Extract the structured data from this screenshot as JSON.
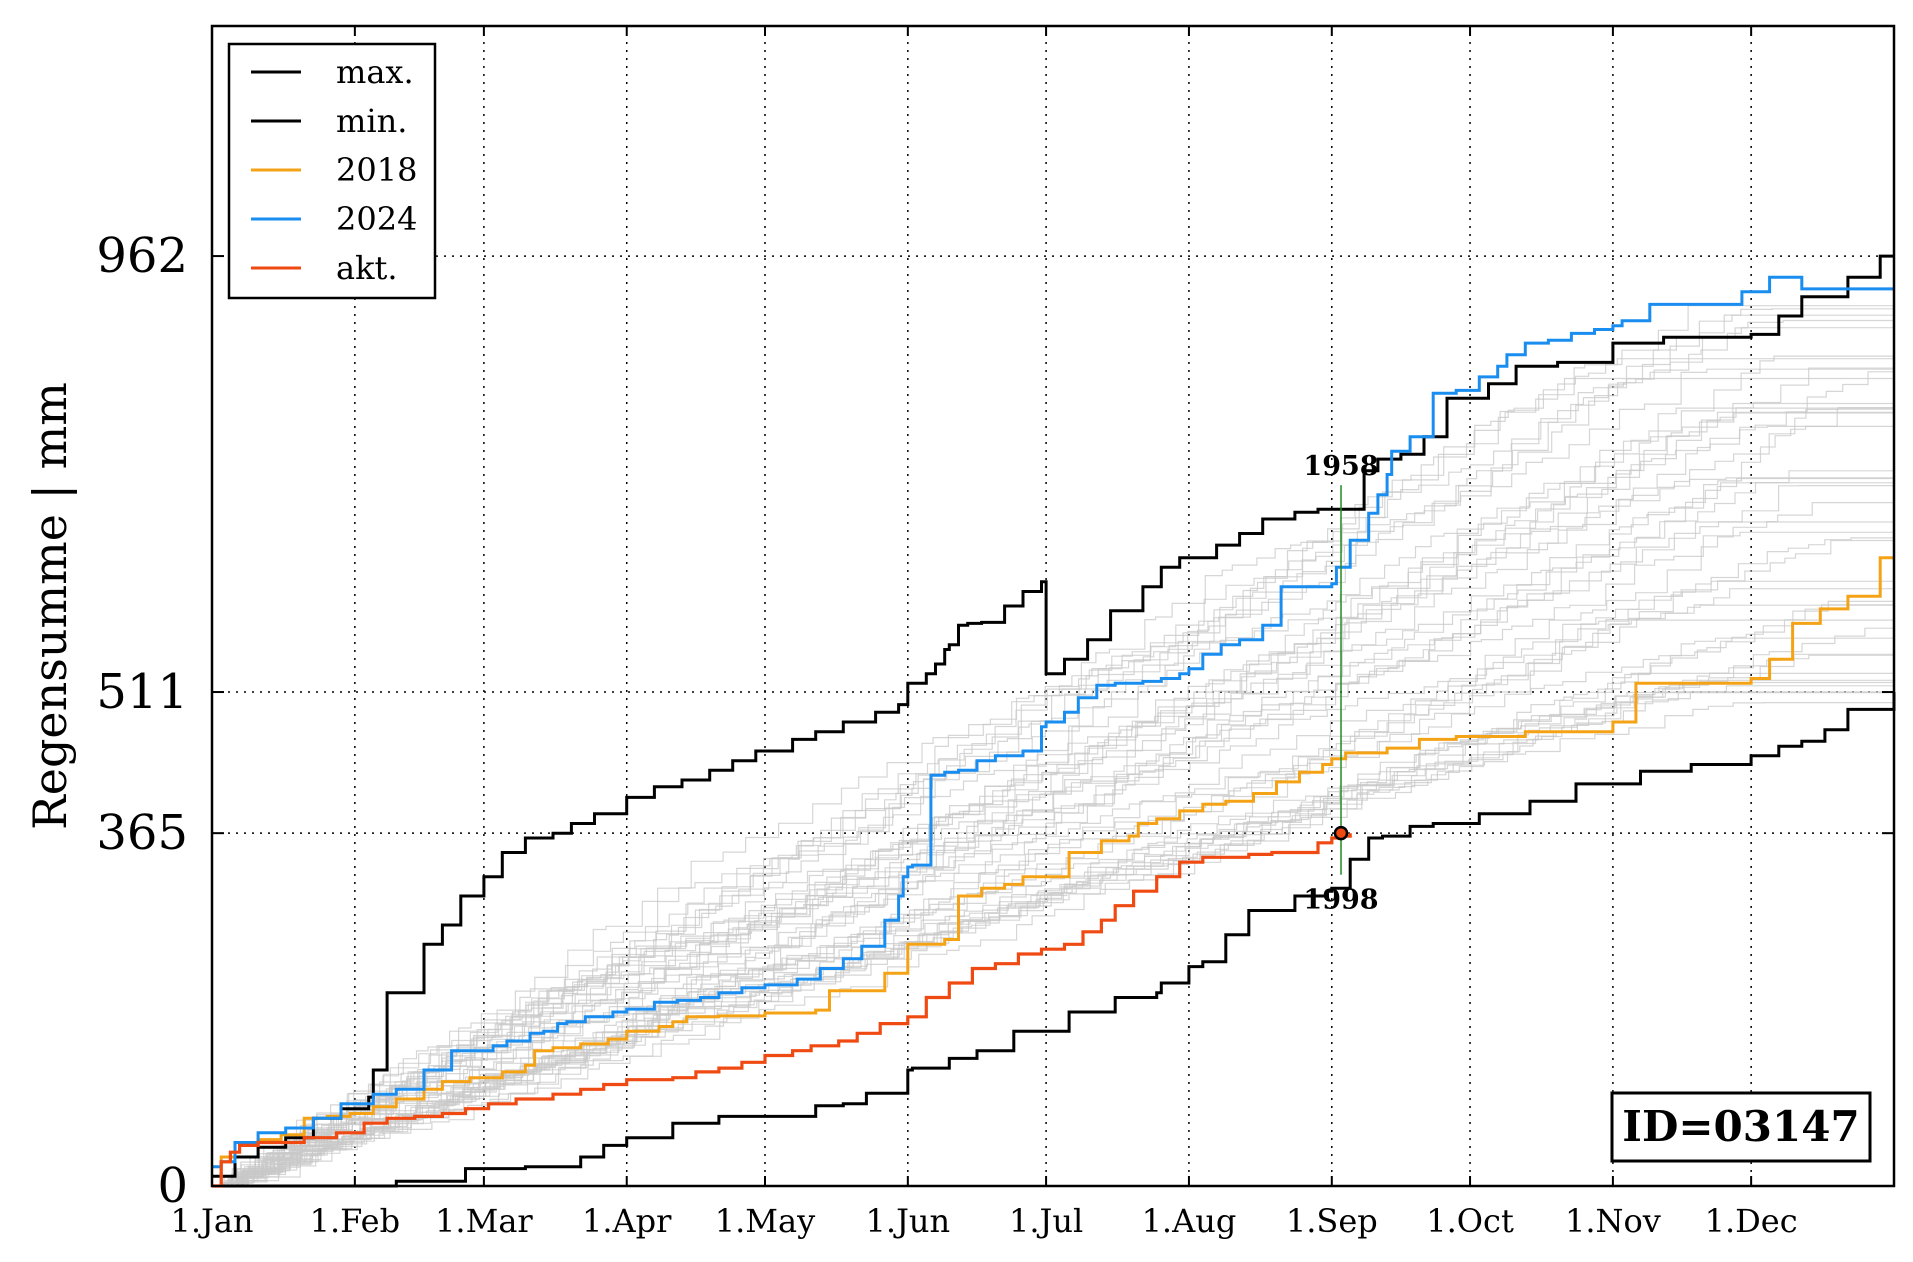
{
  "chart_data": {
    "type": "line",
    "title": "",
    "ylabel": "Regensumme | mm",
    "xlabel": "",
    "xlim": [
      0,
      365
    ],
    "ylim": [
      0,
      1200
    ],
    "x_unit": "day of year",
    "x_ticks": [
      {
        "day": 0,
        "label": "1.Jan"
      },
      {
        "day": 31,
        "label": "1.Feb"
      },
      {
        "day": 59,
        "label": "1.Mar"
      },
      {
        "day": 90,
        "label": "1.Apr"
      },
      {
        "day": 120,
        "label": "1.May"
      },
      {
        "day": 151,
        "label": "1.Jun"
      },
      {
        "day": 181,
        "label": "1.Jul"
      },
      {
        "day": 212,
        "label": "1.Aug"
      },
      {
        "day": 243,
        "label": "1.Sep"
      },
      {
        "day": 273,
        "label": "1.Oct"
      },
      {
        "day": 304,
        "label": "1.Nov"
      },
      {
        "day": 334,
        "label": "1.Dec"
      }
    ],
    "y_ticks": [
      {
        "value": 0,
        "label": "0"
      },
      {
        "value": 365,
        "label": "365"
      },
      {
        "value": 511,
        "label": "511"
      },
      {
        "value": 962,
        "label": "962"
      }
    ],
    "grid": true,
    "legend_position": "top-left",
    "series": [
      {
        "name": "max.",
        "color": "#000000",
        "x": [
          0,
          5,
          10,
          16,
          22,
          28,
          34,
          35,
          38,
          46,
          50,
          54,
          59,
          63,
          68,
          74,
          78,
          83,
          90,
          96,
          102,
          108,
          113,
          118,
          126,
          131,
          137,
          144,
          149,
          151,
          152,
          155,
          157,
          159,
          160,
          162,
          164,
          167,
          172,
          176,
          180,
          181,
          185,
          190,
          195,
          202,
          206,
          210,
          212,
          218,
          223,
          228,
          235,
          240,
          243,
          250,
          253,
          258,
          263,
          268,
          277,
          283,
          292,
          304,
          315,
          334,
          340,
          345,
          355,
          362,
          365
        ],
        "y": [
          10,
          30,
          40,
          50,
          70,
          80,
          92,
          120,
          200,
          250,
          270,
          300,
          320,
          345,
          360,
          365,
          375,
          385,
          402,
          413,
          420,
          430,
          440,
          450,
          462,
          470,
          480,
          490,
          498,
          520,
          520,
          530,
          540,
          555,
          560,
          580,
          582,
          583,
          600,
          615,
          625,
          530,
          545,
          565,
          595,
          620,
          640,
          650,
          650,
          663,
          675,
          690,
          697,
          700,
          700,
          740,
          752,
          757,
          775,
          815,
          830,
          848,
          852,
          872,
          878,
          881,
          900,
          920,
          940,
          962,
          962
        ]
      },
      {
        "name": "min.",
        "color": "#000000",
        "x": [
          0,
          20,
          34,
          40,
          55,
          68,
          80,
          85,
          90,
          100,
          110,
          120,
          131,
          137,
          142,
          151,
          152,
          160,
          166,
          174,
          186,
          196,
          205,
          206,
          212,
          215,
          220,
          225,
          235,
          242,
          243,
          247,
          251,
          254,
          260,
          265,
          275,
          286,
          296,
          310,
          321,
          334,
          340,
          345,
          350,
          355,
          365
        ],
        "y": [
          0,
          0,
          0,
          5,
          18,
          20,
          30,
          42,
          50,
          65,
          72,
          72,
          83,
          85,
          96,
          120,
          122,
          132,
          140,
          160,
          180,
          195,
          200,
          210,
          227,
          232,
          260,
          285,
          300,
          305,
          308,
          338,
          360,
          362,
          372,
          375,
          385,
          398,
          416,
          429,
          436,
          445,
          455,
          460,
          472,
          493,
          511
        ]
      },
      {
        "name": "2018",
        "color": "#f5a316",
        "x": [
          0,
          2,
          5,
          10,
          15,
          20,
          25,
          30,
          35,
          40,
          46,
          50,
          56,
          59,
          63,
          68,
          70,
          74,
          80,
          86,
          90,
          97,
          100,
          103,
          110,
          120,
          131,
          134,
          140,
          146,
          151,
          152,
          159,
          162,
          167,
          172,
          176,
          180,
          186,
          193,
          199,
          201,
          205,
          210,
          215,
          220,
          226,
          231,
          236,
          241,
          243,
          246,
          255,
          262,
          270,
          285,
          300,
          304,
          309,
          315,
          323,
          334,
          338,
          343,
          349,
          355,
          362,
          365
        ],
        "y": [
          0,
          30,
          45,
          48,
          53,
          70,
          72,
          75,
          82,
          90,
          100,
          108,
          112,
          112,
          118,
          125,
          140,
          143,
          147,
          152,
          160,
          165,
          170,
          175,
          176,
          179,
          182,
          202,
          202,
          220,
          250,
          250,
          255,
          300,
          308,
          312,
          320,
          320,
          345,
          357,
          362,
          375,
          380,
          388,
          395,
          398,
          406,
          418,
          428,
          436,
          442,
          448,
          453,
          462,
          465,
          470,
          470,
          480,
          520,
          520,
          520,
          525,
          545,
          582,
          597,
          610,
          650,
          650
        ]
      },
      {
        "name": "2024",
        "color": "#1a8ef0",
        "x": [
          0,
          2,
          5,
          10,
          16,
          22,
          28,
          35,
          40,
          46,
          52,
          56,
          59,
          61,
          64,
          69,
          72,
          75,
          77,
          81,
          87,
          90,
          96,
          101,
          106,
          110,
          115,
          120,
          127,
          132,
          137,
          141,
          146,
          149,
          150,
          151,
          152,
          156,
          159,
          162,
          166,
          170,
          176,
          180,
          181,
          185,
          188,
          192,
          196,
          202,
          206,
          210,
          212,
          215,
          219,
          223,
          228,
          232,
          237,
          243,
          244,
          247,
          251,
          253,
          255,
          256,
          260,
          265,
          270,
          275,
          279,
          281,
          285,
          290,
          295,
          300,
          304,
          306,
          312,
          321,
          324,
          330,
          332,
          334,
          338,
          340,
          345,
          355,
          365
        ],
        "y": [
          20,
          25,
          45,
          55,
          60,
          70,
          85,
          95,
          100,
          120,
          140,
          140,
          140,
          145,
          150,
          158,
          160,
          168,
          170,
          175,
          180,
          183,
          190,
          192,
          195,
          200,
          205,
          208,
          214,
          225,
          235,
          248,
          275,
          300,
          320,
          330,
          332,
          425,
          428,
          430,
          440,
          445,
          450,
          475,
          480,
          490,
          505,
          518,
          520,
          522,
          525,
          530,
          535,
          550,
          560,
          565,
          580,
          620,
          620,
          623,
          640,
          668,
          696,
          715,
          736,
          760,
          775,
          820,
          823,
          837,
          848,
          860,
          872,
          875,
          882,
          886,
          890,
          895,
          912,
          912,
          912,
          912,
          925,
          925,
          940,
          940,
          928,
          928,
          928
        ]
      },
      {
        "name": "akt.",
        "color": "#f04a13",
        "x": [
          0,
          2,
          4,
          6,
          10,
          14,
          20,
          27,
          33,
          38,
          44,
          50,
          55,
          60,
          66,
          70,
          74,
          80,
          85,
          90,
          95,
          100,
          105,
          110,
          115,
          120,
          126,
          130,
          136,
          140,
          145,
          151,
          155,
          160,
          165,
          170,
          175,
          180,
          185,
          189,
          193,
          196,
          200,
          205,
          210,
          215,
          220,
          225,
          230,
          235,
          240,
          243,
          245,
          247
        ],
        "y": [
          0,
          25,
          35,
          42,
          45,
          45,
          50,
          55,
          65,
          70,
          72,
          75,
          80,
          85,
          90,
          90,
          95,
          100,
          105,
          110,
          110,
          112,
          118,
          122,
          128,
          135,
          140,
          145,
          150,
          158,
          168,
          175,
          195,
          210,
          225,
          230,
          240,
          245,
          250,
          263,
          275,
          290,
          305,
          320,
          335,
          340,
          340,
          343,
          345,
          345,
          355,
          360,
          362,
          365
        ]
      }
    ],
    "background_series_color": "#c8c8c8",
    "annotations": [
      {
        "text": "1958",
        "x": 245,
        "y": 725,
        "kind": "max-at-date"
      },
      {
        "text": "1998",
        "x": 245,
        "y": 322,
        "kind": "min-at-date"
      }
    ],
    "marker": {
      "x": 245,
      "y": 365,
      "color": "#f04a13"
    },
    "vertical_marker": {
      "x": 245,
      "y_from": 322,
      "y_to": 725,
      "color": "#228b22"
    },
    "id_box": "ID=03147"
  }
}
